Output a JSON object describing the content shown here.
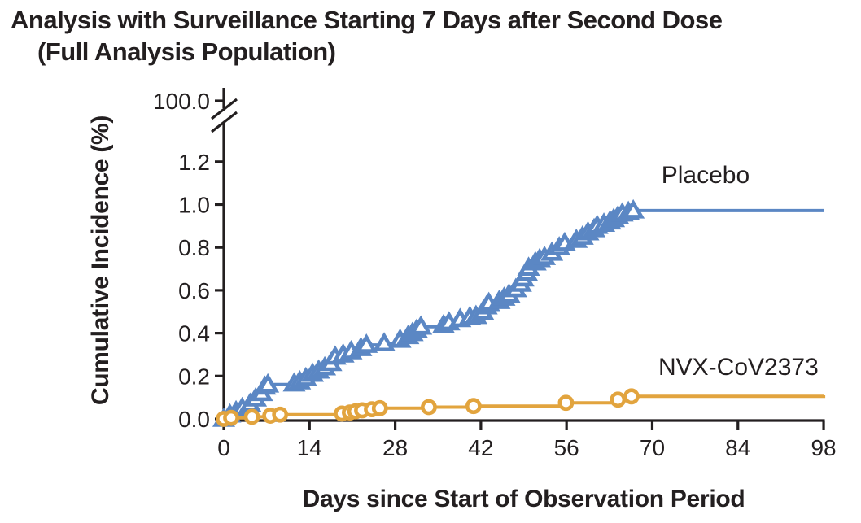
{
  "figure_title": {
    "line1": "Analysis with Surveillance Starting 7 Days after Second Dose",
    "line2": "(Full Analysis Population)"
  },
  "chart_data": {
    "type": "line",
    "subtype": "kaplan-meier-step-cumulative-incidence",
    "title": "Analysis with Surveillance Starting 7 Days after Second Dose (Full Analysis Population)",
    "xlabel": "Days since Start of Observation Period",
    "ylabel": "Cumulative Incidence (%)",
    "x_ticks": [
      0,
      14,
      28,
      42,
      56,
      70,
      84,
      98
    ],
    "y_tick_labels": [
      "0.0",
      "0.2",
      "0.4",
      "0.6",
      "0.8",
      "1.0",
      "1.2"
    ],
    "y_tick_values": [
      0.0,
      0.2,
      0.4,
      0.6,
      0.8,
      1.0,
      1.2
    ],
    "y_axis_break": {
      "upper_tick_label": "100.0"
    },
    "xlim": [
      0,
      98
    ],
    "ylim": [
      0,
      1.3
    ],
    "grid": false,
    "colors": {
      "axis_and_text": "#231f20",
      "placebo": "#5b87c4",
      "nvx": "#e2a43e",
      "background": "#ffffff"
    },
    "series": [
      {
        "name": "Placebo",
        "label": "Placebo",
        "color_key": "placebo",
        "marker": "open-triangle",
        "label_anchor": {
          "day": 71.5,
          "value": 1.1
        },
        "final_value_pct": 0.97,
        "points_day_pct": [
          [
            0,
            0.0
          ],
          [
            1,
            0.02
          ],
          [
            2,
            0.035
          ],
          [
            3,
            0.05
          ],
          [
            4.3,
            0.07
          ],
          [
            5.2,
            0.095
          ],
          [
            6.2,
            0.12
          ],
          [
            6.7,
            0.15
          ],
          [
            7.2,
            0.16
          ],
          [
            11.5,
            0.165
          ],
          [
            12.4,
            0.175
          ],
          [
            13.4,
            0.19
          ],
          [
            14.5,
            0.21
          ],
          [
            15.5,
            0.225
          ],
          [
            16.5,
            0.24
          ],
          [
            17.5,
            0.26
          ],
          [
            18.2,
            0.29
          ],
          [
            19.5,
            0.3
          ],
          [
            20.8,
            0.315
          ],
          [
            22.4,
            0.33
          ],
          [
            23.3,
            0.345
          ],
          [
            26.2,
            0.352
          ],
          [
            28.8,
            0.369
          ],
          [
            30.1,
            0.386
          ],
          [
            30.8,
            0.4
          ],
          [
            31.5,
            0.415
          ],
          [
            32.2,
            0.43
          ],
          [
            35.9,
            0.437
          ],
          [
            36.8,
            0.45
          ],
          [
            38.6,
            0.465
          ],
          [
            40.2,
            0.475
          ],
          [
            41.2,
            0.48
          ],
          [
            42.3,
            0.5
          ],
          [
            42.9,
            0.525
          ],
          [
            43.3,
            0.54
          ],
          [
            45,
            0.55
          ],
          [
            45.8,
            0.565
          ],
          [
            46.6,
            0.58
          ],
          [
            47.7,
            0.605
          ],
          [
            48.5,
            0.63
          ],
          [
            48.9,
            0.655
          ],
          [
            49.5,
            0.68
          ],
          [
            49.8,
            0.705
          ],
          [
            50.9,
            0.73
          ],
          [
            51.6,
            0.745
          ],
          [
            52.4,
            0.755
          ],
          [
            53.6,
            0.775
          ],
          [
            54.8,
            0.8
          ],
          [
            55.7,
            0.82
          ],
          [
            57.6,
            0.835
          ],
          [
            58.6,
            0.85
          ],
          [
            59.5,
            0.87
          ],
          [
            60.5,
            0.885
          ],
          [
            61,
            0.9
          ],
          [
            62.1,
            0.91
          ],
          [
            63.1,
            0.921
          ],
          [
            63.7,
            0.932
          ],
          [
            64.4,
            0.945
          ],
          [
            65.1,
            0.958
          ],
          [
            66.1,
            0.965
          ],
          [
            66.9,
            0.972
          ],
          [
            98,
            0.972
          ]
        ]
      },
      {
        "name": "NVX-CoV2373",
        "label": "NVX-CoV2373",
        "color_key": "nvx",
        "marker": "open-circle",
        "label_anchor": {
          "day": 71.0,
          "value": 0.205
        },
        "final_value_pct": 0.11,
        "points_day_pct": [
          [
            0,
            0.0
          ],
          [
            1.2,
            0.005
          ],
          [
            4.6,
            0.01
          ],
          [
            7.6,
            0.015
          ],
          [
            9.2,
            0.02
          ],
          [
            19.3,
            0.025
          ],
          [
            20.6,
            0.03
          ],
          [
            21.5,
            0.035
          ],
          [
            22.6,
            0.04
          ],
          [
            24.2,
            0.045
          ],
          [
            25.5,
            0.05
          ],
          [
            33.5,
            0.055
          ],
          [
            40.8,
            0.06
          ],
          [
            55.9,
            0.075
          ],
          [
            64.4,
            0.09
          ],
          [
            66.6,
            0.105
          ],
          [
            98,
            0.11
          ]
        ]
      }
    ]
  }
}
